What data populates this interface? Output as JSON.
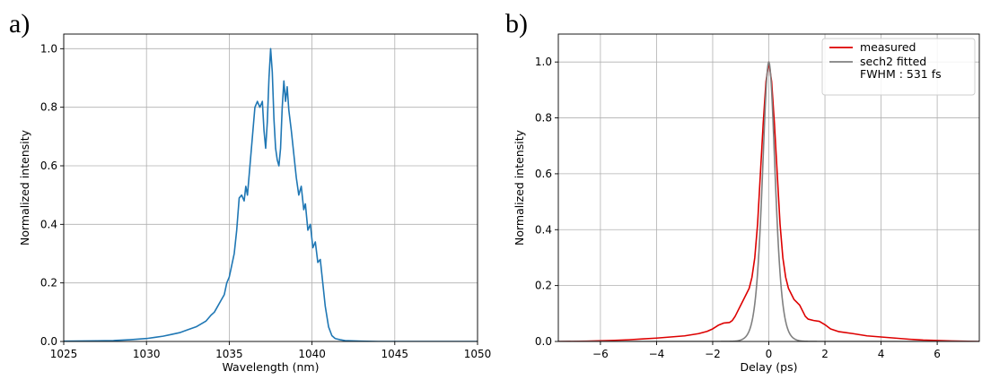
{
  "chart_data": [
    {
      "panel_label": "a)",
      "type": "line",
      "xlabel": "Wavelength (nm)",
      "ylabel": "Normalized intensity",
      "xlim": [
        1025,
        1050
      ],
      "ylim": [
        0,
        1.05
      ],
      "xticks": [
        1025,
        1030,
        1035,
        1040,
        1045,
        1050
      ],
      "yticks": [
        0.0,
        0.2,
        0.4,
        0.6,
        0.8,
        1.0
      ],
      "grid": true,
      "series": [
        {
          "color": "#1f77b4",
          "x": [
            1025,
            1027,
            1028,
            1029,
            1030,
            1030.5,
            1031,
            1031.5,
            1032,
            1032.5,
            1033,
            1033.3,
            1033.6,
            1033.9,
            1034.1,
            1034.3,
            1034.5,
            1034.7,
            1034.85,
            1035,
            1035.15,
            1035.3,
            1035.45,
            1035.6,
            1035.75,
            1035.9,
            1036.0,
            1036.1,
            1036.25,
            1036.4,
            1036.55,
            1036.7,
            1036.85,
            1037.0,
            1037.1,
            1037.2,
            1037.3,
            1037.4,
            1037.5,
            1037.6,
            1037.7,
            1037.8,
            1037.9,
            1038.0,
            1038.1,
            1038.2,
            1038.3,
            1038.4,
            1038.5,
            1038.6,
            1038.75,
            1038.9,
            1039.05,
            1039.2,
            1039.35,
            1039.5,
            1039.6,
            1039.75,
            1039.9,
            1040.05,
            1040.2,
            1040.35,
            1040.5,
            1040.65,
            1040.8,
            1041.0,
            1041.2,
            1041.4,
            1041.7,
            1042,
            1043,
            1044,
            1046,
            1050
          ],
          "y": [
            0.001,
            0.002,
            0.003,
            0.006,
            0.01,
            0.014,
            0.018,
            0.024,
            0.03,
            0.04,
            0.05,
            0.06,
            0.07,
            0.09,
            0.1,
            0.12,
            0.14,
            0.16,
            0.2,
            0.22,
            0.26,
            0.3,
            0.38,
            0.49,
            0.5,
            0.48,
            0.53,
            0.5,
            0.6,
            0.7,
            0.8,
            0.82,
            0.8,
            0.82,
            0.72,
            0.66,
            0.75,
            0.9,
            1.0,
            0.92,
            0.76,
            0.66,
            0.62,
            0.6,
            0.66,
            0.8,
            0.89,
            0.82,
            0.87,
            0.79,
            0.72,
            0.64,
            0.56,
            0.5,
            0.53,
            0.45,
            0.47,
            0.38,
            0.4,
            0.32,
            0.34,
            0.27,
            0.28,
            0.2,
            0.12,
            0.05,
            0.02,
            0.01,
            0.006,
            0.003,
            0.001,
            0.0,
            0.0,
            0.0
          ]
        }
      ]
    },
    {
      "panel_label": "b)",
      "type": "line",
      "xlabel": "Delay (ps)",
      "ylabel": "Normalized intensity",
      "xlim": [
        -7.5,
        7.5
      ],
      "ylim": [
        0,
        1.1
      ],
      "xticks": [
        -6,
        -4,
        -2,
        0,
        2,
        4,
        6
      ],
      "xtick_labels": [
        "−6",
        "−4",
        "−2",
        "0",
        "2",
        "4",
        "6"
      ],
      "yticks": [
        0.0,
        0.2,
        0.4,
        0.6,
        0.8,
        1.0
      ],
      "grid": true,
      "legend": {
        "placement": "top-right"
      },
      "series": [
        {
          "name": "measured",
          "color": "#dd0000",
          "x": [
            -7.5,
            -6.5,
            -5.5,
            -5.0,
            -4.5,
            -4.0,
            -3.5,
            -3.0,
            -2.5,
            -2.2,
            -2.0,
            -1.8,
            -1.6,
            -1.4,
            -1.3,
            -1.2,
            -1.1,
            -1.0,
            -0.9,
            -0.8,
            -0.7,
            -0.6,
            -0.5,
            -0.4,
            -0.3,
            -0.2,
            -0.1,
            0.0,
            0.1,
            0.2,
            0.3,
            0.4,
            0.5,
            0.6,
            0.7,
            0.8,
            0.9,
            1.0,
            1.1,
            1.2,
            1.3,
            1.4,
            1.6,
            1.8,
            2.0,
            2.2,
            2.5,
            3.0,
            3.5,
            4.0,
            4.5,
            5.0,
            5.5,
            6.5,
            7.5
          ],
          "y": [
            0.0,
            0.001,
            0.004,
            0.006,
            0.009,
            0.012,
            0.016,
            0.02,
            0.028,
            0.036,
            0.045,
            0.058,
            0.066,
            0.068,
            0.075,
            0.09,
            0.11,
            0.13,
            0.15,
            0.17,
            0.19,
            0.23,
            0.3,
            0.42,
            0.6,
            0.78,
            0.93,
            1.0,
            0.93,
            0.78,
            0.6,
            0.42,
            0.3,
            0.23,
            0.19,
            0.17,
            0.15,
            0.14,
            0.13,
            0.11,
            0.09,
            0.08,
            0.075,
            0.072,
            0.06,
            0.045,
            0.035,
            0.028,
            0.02,
            0.016,
            0.012,
            0.008,
            0.005,
            0.002,
            0.0
          ]
        },
        {
          "name": "sech2 fitted\nFWHM : 531 fs",
          "color": "#808080",
          "sech2_fwhm_ps": 0.531,
          "x_range": [
            -7.5,
            7.5
          ]
        }
      ]
    }
  ]
}
